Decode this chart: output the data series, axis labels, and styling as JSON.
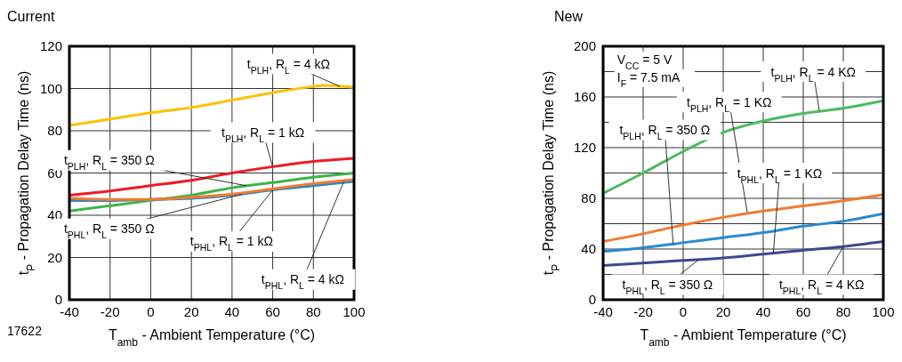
{
  "chart_data": [
    {
      "type": "line",
      "title": "Current",
      "xlabel": "T$_{amb}$ - Ambient Temperature (°C)",
      "ylabel": "t$_{P}$ - Propagation Delay Time (ns)",
      "xlim": [
        -40,
        100
      ],
      "ylim": [
        0,
        120
      ],
      "xticks": [
        -40,
        -20,
        0,
        20,
        40,
        60,
        80,
        100
      ],
      "yticks": [
        0,
        20,
        40,
        60,
        80,
        100,
        120
      ],
      "grid": true,
      "series": [
        {
          "color": "#ffc000",
          "x": [
            -40,
            -20,
            0,
            20,
            40,
            60,
            80,
            85,
            100
          ],
          "values": [
            82.5,
            85.5,
            88.5,
            91,
            94.5,
            98,
            101,
            101.5,
            100.5
          ]
        },
        {
          "color": "#ee1c25",
          "x": [
            -40,
            -20,
            0,
            20,
            40,
            60,
            80,
            100
          ],
          "values": [
            49.5,
            51.5,
            54,
            56.5,
            60,
            63,
            65.5,
            67
          ]
        },
        {
          "color": "#3cb44a",
          "x": [
            -40,
            -20,
            0,
            20,
            40,
            60,
            80,
            100
          ],
          "values": [
            42,
            44.5,
            47,
            49.5,
            53,
            55.5,
            58,
            60
          ]
        },
        {
          "color": "#2e86c8",
          "x": [
            -40,
            -20,
            0,
            20,
            40,
            60,
            80,
            100
          ],
          "values": [
            47,
            47,
            47.5,
            48,
            49.5,
            52,
            54,
            56
          ]
        },
        {
          "color": "#f47a30",
          "x": [
            -40,
            -20,
            0,
            20,
            40,
            60,
            80,
            100
          ],
          "values": [
            48,
            47.5,
            47.5,
            48.5,
            50,
            52.5,
            55,
            57
          ]
        }
      ],
      "annotations": [
        {
          "text": "t$_{PLH}$, R$_{L}$ = 4 kΩ",
          "x": 93,
          "y": 101
        },
        {
          "text": "t$_{PLH}$, R$_{L}$ = 1 kΩ",
          "x": 60,
          "y": 63
        },
        {
          "text": "t$_{PLH}$, R$_{L}$ = 350 Ω",
          "x": 47,
          "y": 54
        },
        {
          "text": "t$_{PHL}$, R$_{L}$ = 350 Ω",
          "x": 45,
          "y": 50
        },
        {
          "text": "t$_{PHL}$, R$_{L}$ = 1 kΩ",
          "x": 60,
          "y": 52
        },
        {
          "text": "t$_{PHL}$, R$_{L}$ = 4 kΩ",
          "x": 95,
          "y": 56
        },
        "17622"
      ]
    },
    {
      "type": "line",
      "title": "New",
      "xlabel": "T$_{amb}$ - Ambient Temperature (°C)",
      "ylabel": "t$_{P}$ - Propagation Delay Time (ns)",
      "xlim": [
        -40,
        100
      ],
      "ylim": [
        0,
        200
      ],
      "xticks": [
        -40,
        -20,
        0,
        20,
        40,
        60,
        80,
        100
      ],
      "yticks": [
        0,
        {
          "value": 20,
          "label": null
        },
        40,
        {
          "value": 60,
          "label": null
        },
        80,
        {
          "value": 100,
          "label": null
        },
        120,
        {
          "value": 140,
          "label": null
        },
        160,
        {
          "value": 180,
          "label": null
        },
        200
      ],
      "grid": true,
      "series": [
        {
          "color": "#4cbb5f",
          "x": [
            -40,
            -20,
            0,
            20,
            40,
            60,
            80,
            100
          ],
          "values": [
            84,
            100,
            117,
            132,
            141,
            147,
            151,
            157
          ]
        },
        {
          "color": "#f07b32",
          "x": [
            -40,
            -20,
            0,
            20,
            40,
            60,
            80,
            100
          ],
          "values": [
            46,
            52,
            59,
            65,
            70,
            74,
            78,
            83
          ]
        },
        {
          "color": "#2a8ad0",
          "x": [
            -40,
            -20,
            0,
            20,
            40,
            60,
            80,
            100
          ],
          "values": [
            38,
            41,
            45,
            49,
            53,
            58,
            62,
            68
          ]
        },
        {
          "color": "#3b4a8f",
          "x": [
            -40,
            -20,
            0,
            20,
            40,
            60,
            80,
            100
          ],
          "values": [
            27,
            29,
            31,
            33,
            36,
            39,
            42,
            46
          ]
        }
      ],
      "annotations": [
        {
          "text": "t$_{PLH}$, R$_{L}$ = 4 KΩ",
          "x": 68,
          "y": 149
        },
        {
          "text": "t$_{PLH}$, R$_{L}$ = 1 KΩ",
          "x": 32,
          "y": 69
        },
        {
          "text": "t$_{PLH}$, R$_{L}$ = 350 Ω",
          "x": -5,
          "y": 44
        },
        {
          "text": "t$_{PHL}$, R$_{L}$ = 350 Ω",
          "x": 8,
          "y": 32
        },
        {
          "text": "t$_{PHL}$, R$_{L}$ = 1 KΩ",
          "x": 45,
          "y": 36
        },
        {
          "text": "t$_{PHL}$, R$_{L}$ = 4 KΩ",
          "x": 80,
          "y": 42
        },
        "V$_{CC}$ = 5 V",
        "I$_{F}$ = 7.5 mA"
      ]
    }
  ]
}
